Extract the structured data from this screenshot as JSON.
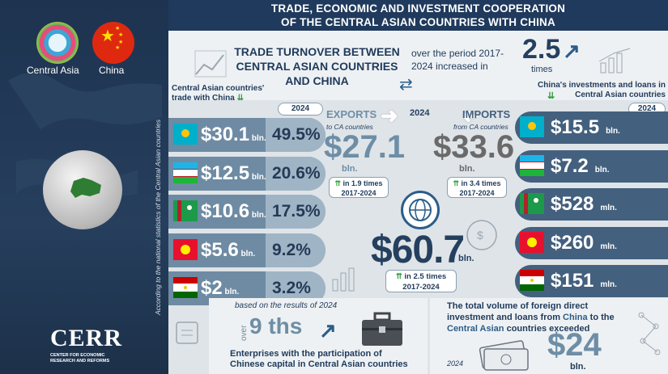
{
  "header": {
    "line1": "TRADE, ECONOMIC AND INVESTMENT COOPERATION",
    "line2": "OF THE CENTRAL ASIAN COUNTRIES WITH CHINA"
  },
  "left": {
    "ca_label": "Central Asia",
    "china_label": "China",
    "vertical_note": "According to the national statistics of the Central Asian countries",
    "logo_text": "CERR",
    "logo_sub1": "CENTER FOR ECONOMIC",
    "logo_sub2": "RESEARCH AND REFORMS"
  },
  "turnover": {
    "title_l1": "TRADE TURNOVER BETWEEN",
    "title_l2": "CENTRAL ASIAN COUNTRIES",
    "title_l3": "AND CHINA",
    "period_l1": "over the period 2017-",
    "period_l2": "2024 increased in",
    "mult": "2.5",
    "mult_unit": "times"
  },
  "trade": {
    "label_l1": "Central Asian countries'",
    "label_l2": "trade with China",
    "year": "2024",
    "rows": [
      {
        "value": "$30.1",
        "unit": "bln.",
        "pct": "49.5%",
        "share": 49.5
      },
      {
        "value": "$12.5",
        "unit": "bln.",
        "pct": "20.6%",
        "share": 20.6
      },
      {
        "value": "$10.6",
        "unit": "bln.",
        "pct": "17.5%",
        "share": 17.5
      },
      {
        "value": "$5.6",
        "unit": "bln.",
        "pct": "9.2%",
        "share": 9.2
      },
      {
        "value": "$2",
        "unit": "bln.",
        "pct": "3.2%",
        "share": 3.2
      }
    ]
  },
  "exports": {
    "title": "EXPORTS",
    "sub": "to CA countries",
    "value": "$27.1",
    "unit": "bln.",
    "growth": "in 1.9 times",
    "period": "2017-2024"
  },
  "center": {
    "year": "2024",
    "total": "$60.7",
    "unit": "bln.",
    "growth": "in 2.5 times",
    "period": "2017-2024"
  },
  "imports": {
    "title": "IMPORTS",
    "sub": "from CA countries",
    "value": "$33.6",
    "unit": "bln.",
    "growth": "in 3.4 times",
    "period": "2017-2024"
  },
  "invest": {
    "label_l1": "China's investments and loans in",
    "label_l2": "Central Asian countries",
    "year": "2024",
    "rows": [
      {
        "value": "$15.5",
        "unit": "bln."
      },
      {
        "value": "$7.2",
        "unit": "bln."
      },
      {
        "value": "$528",
        "unit": "mln."
      },
      {
        "value": "$260",
        "unit": "mln."
      },
      {
        "value": "$151",
        "unit": "mln."
      }
    ]
  },
  "enterprises": {
    "based": "based on the results of 2024",
    "over": "over",
    "count": "9 ths",
    "desc_l1": "Enterprises with the participation of",
    "desc_l2": "Chinese capital in Central Asian countries"
  },
  "fdi": {
    "l1": "The total volume of foreign direct",
    "l2_a": "investment and loans from ",
    "l2_b": "China",
    "l2_c": " to the",
    "l3_a": "Central Asian",
    "l3_b": " countries exceeded",
    "year": "2024",
    "value": "$24",
    "unit": "bln."
  },
  "colors": {
    "navy": "#1f3a5c",
    "teal": "#6e8ba3",
    "green": "#2e9e3e"
  }
}
